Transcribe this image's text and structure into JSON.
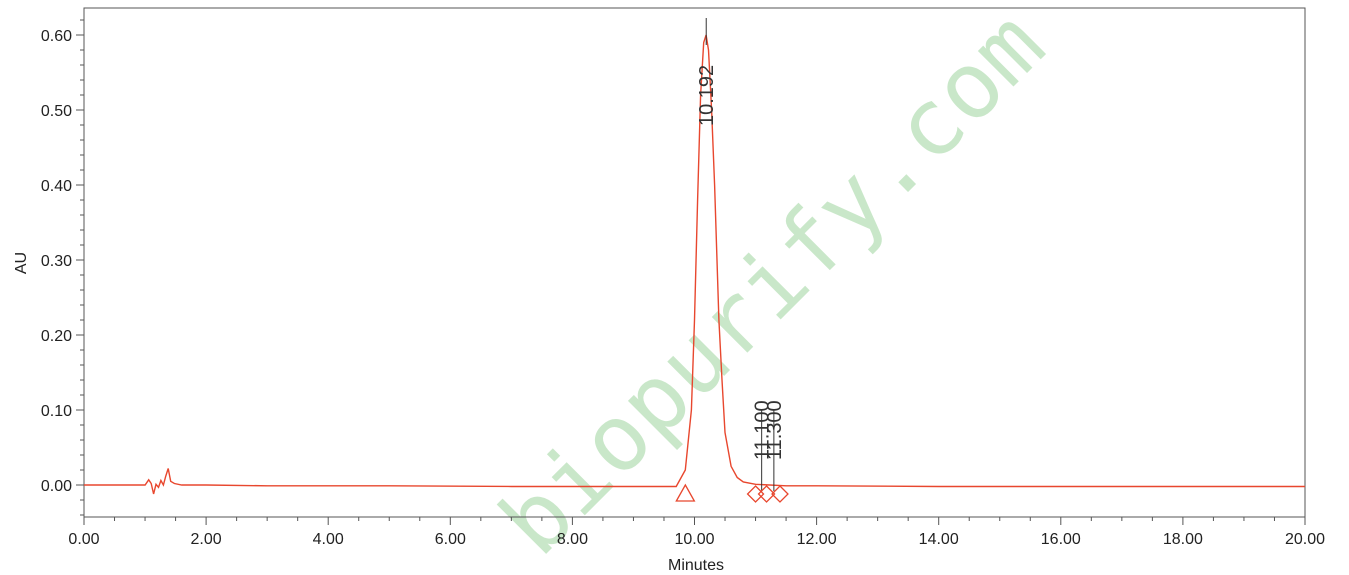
{
  "chart_data": {
    "type": "line",
    "title": "",
    "xlabel": "Minutes",
    "ylabel": "AU",
    "xlim": [
      0,
      20
    ],
    "ylim": [
      -0.04,
      0.62
    ],
    "grid": false,
    "x_ticks": [
      "0.00",
      "2.00",
      "4.00",
      "6.00",
      "8.00",
      "10.00",
      "12.00",
      "14.00",
      "16.00",
      "18.00",
      "20.00"
    ],
    "x_tick_values": [
      0,
      2,
      4,
      6,
      8,
      10,
      12,
      14,
      16,
      18,
      20
    ],
    "y_ticks": [
      "0.00",
      "0.10",
      "0.20",
      "0.30",
      "0.40",
      "0.50",
      "0.60"
    ],
    "y_tick_values": [
      0,
      0.1,
      0.2,
      0.3,
      0.4,
      0.5,
      0.6
    ],
    "series": [
      {
        "color": "#e8472e",
        "x": [
          0.0,
          0.5,
          1.0,
          1.06,
          1.1,
          1.14,
          1.18,
          1.22,
          1.26,
          1.3,
          1.34,
          1.38,
          1.42,
          1.48,
          1.6,
          2.0,
          3.0,
          5.0,
          7.0,
          8.0,
          9.0,
          9.7,
          9.85,
          9.95,
          10.0,
          10.05,
          10.1,
          10.15,
          10.19,
          10.23,
          10.28,
          10.33,
          10.4,
          10.45,
          10.5,
          10.6,
          10.7,
          10.8,
          11.0,
          11.5,
          12.0,
          14.0,
          16.0,
          18.0,
          20.0
        ],
        "y": [
          0.0,
          0.0,
          0.0,
          0.007,
          0.002,
          -0.012,
          0.001,
          -0.003,
          0.006,
          0.0,
          0.012,
          0.022,
          0.005,
          0.002,
          0.0,
          0.0,
          -0.001,
          -0.001,
          -0.002,
          -0.002,
          -0.002,
          -0.002,
          0.02,
          0.1,
          0.22,
          0.38,
          0.52,
          0.59,
          0.6,
          0.58,
          0.5,
          0.4,
          0.22,
          0.14,
          0.07,
          0.025,
          0.01,
          0.004,
          0.001,
          -0.001,
          -0.001,
          -0.002,
          -0.002,
          -0.002,
          -0.002
        ]
      }
    ],
    "peaks": [
      {
        "label": "10.192",
        "x": 10.192,
        "y": 0.6
      },
      {
        "label": "11.100",
        "x": 11.1,
        "y": 0.0
      },
      {
        "label": "11.300",
        "x": 11.3,
        "y": 0.0
      }
    ],
    "markers": [
      {
        "shape": "triangle",
        "x": 9.85
      },
      {
        "shape": "diamond",
        "x": 11.0
      },
      {
        "shape": "diamond",
        "x": 11.18
      },
      {
        "shape": "diamond",
        "x": 11.4
      }
    ]
  },
  "watermark": "biopurify.com"
}
